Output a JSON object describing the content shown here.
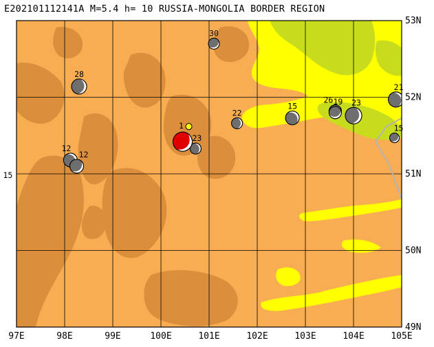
{
  "title": "E202101112141A M=5.4 h= 10 RUSSIA-MONGOLIA BORDER REGION",
  "map": {
    "lon_range": [
      97,
      105
    ],
    "lat_range": [
      49,
      53
    ],
    "lon_ticks": [
      {
        "value": 97,
        "label": "97E"
      },
      {
        "value": 98,
        "label": "98E"
      },
      {
        "value": 99,
        "label": "99E"
      },
      {
        "value": 100,
        "label": "100E"
      },
      {
        "value": 101,
        "label": "101E"
      },
      {
        "value": 102,
        "label": "102E"
      },
      {
        "value": 103,
        "label": "103E"
      },
      {
        "value": 104,
        "label": "104E"
      },
      {
        "value": 105,
        "label": "105E"
      }
    ],
    "lat_ticks": [
      {
        "value": 53,
        "label": "53N"
      },
      {
        "value": 52,
        "label": "52N"
      },
      {
        "value": 51,
        "label": "51N"
      },
      {
        "value": 50,
        "label": "50N"
      },
      {
        "value": 49,
        "label": "49N"
      }
    ],
    "colors": {
      "low_terrain": "#f8ad52",
      "high_terrain": "#db8f3d",
      "lake_basin": "#ffff00",
      "basin_green": "#c8dc1e",
      "border_line": "#b4b4b4",
      "main_event": "#e00000",
      "historic_event": "#6e6e6e"
    },
    "main_event": {
      "lon": 100.45,
      "lat": 51.42,
      "label": "1"
    },
    "events": [
      {
        "lon": 96.82,
        "lat": 50.84,
        "depth": "15"
      },
      {
        "lon": 98.12,
        "lat": 51.18,
        "depth": "12"
      },
      {
        "lon": 98.25,
        "lat": 51.1,
        "depth": "12"
      },
      {
        "lon": 98.3,
        "lat": 52.14,
        "depth": "28"
      },
      {
        "lon": 100.72,
        "lat": 51.33,
        "depth": "23"
      },
      {
        "lon": 101.1,
        "lat": 52.7,
        "depth": "30"
      },
      {
        "lon": 101.58,
        "lat": 51.66,
        "depth": "22"
      },
      {
        "lon": 102.73,
        "lat": 51.73,
        "depth": "15"
      },
      {
        "lon": 103.62,
        "lat": 51.82,
        "depth": "26"
      },
      {
        "lon": 103.62,
        "lat": 51.8,
        "depth": "19"
      },
      {
        "lon": 104.0,
        "lat": 51.76,
        "depth": "23"
      },
      {
        "lon": 104.88,
        "lat": 51.97,
        "depth": "21"
      },
      {
        "lon": 104.85,
        "lat": 51.47,
        "depth": "15"
      }
    ]
  }
}
